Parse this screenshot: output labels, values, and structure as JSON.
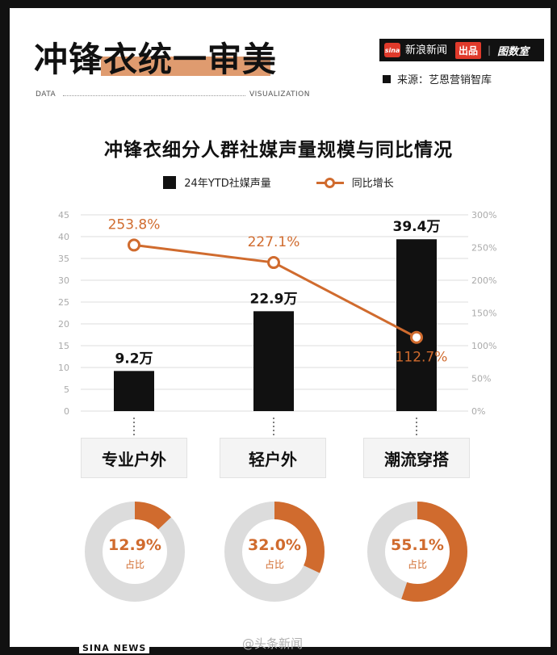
{
  "header": {
    "title": "冲锋衣统一审美",
    "brand": {
      "name": "新浪新闻",
      "sub": "Sina News",
      "tag": "出品",
      "column": "图数室"
    },
    "source": "来源：艺恩营销智库",
    "band_left": "DATA",
    "band_right": "VISUALIZATION"
  },
  "colors": {
    "accent": "#d06b2e",
    "bar": "#111111",
    "donut_rest": "#dcdcdc",
    "grid": "#dddddd"
  },
  "chart_data": {
    "type": "bar",
    "title": "冲锋衣细分人群社媒声量规模与同比情况",
    "categories": [
      "专业户外",
      "轻户外",
      "潮流穿搭"
    ],
    "series": [
      {
        "name": "24年YTD社媒声量",
        "type": "bar",
        "axis": "left",
        "values": [
          9.2,
          22.9,
          39.4
        ],
        "labels": [
          "9.2万",
          "22.9万",
          "39.4万"
        ]
      },
      {
        "name": "同比增长",
        "type": "line",
        "axis": "right",
        "values": [
          253.8,
          227.1,
          112.7
        ],
        "labels": [
          "253.8%",
          "227.1%",
          "112.7%"
        ]
      }
    ],
    "y_left": {
      "min": 0,
      "max": 45,
      "ticks": [
        "0",
        "5",
        "10",
        "15",
        "20",
        "25",
        "30",
        "35",
        "40",
        "45"
      ]
    },
    "y_right": {
      "min": 0,
      "max": 300,
      "ticks": [
        "0%",
        "50%",
        "100%",
        "150%",
        "200%",
        "250%",
        "300%"
      ]
    },
    "grid": true,
    "legend_position": "top",
    "share": [
      {
        "category": "专业户外",
        "value": 12.9,
        "label": "12.9%",
        "caption": "占比"
      },
      {
        "category": "轻户外",
        "value": 32.0,
        "label": "32.0%",
        "caption": "占比"
      },
      {
        "category": "潮流穿搭",
        "value": 55.1,
        "label": "55.1%",
        "caption": "占比"
      }
    ]
  },
  "footer": {
    "brand": "SINA NEWS",
    "watermark": "@头条新闻"
  }
}
